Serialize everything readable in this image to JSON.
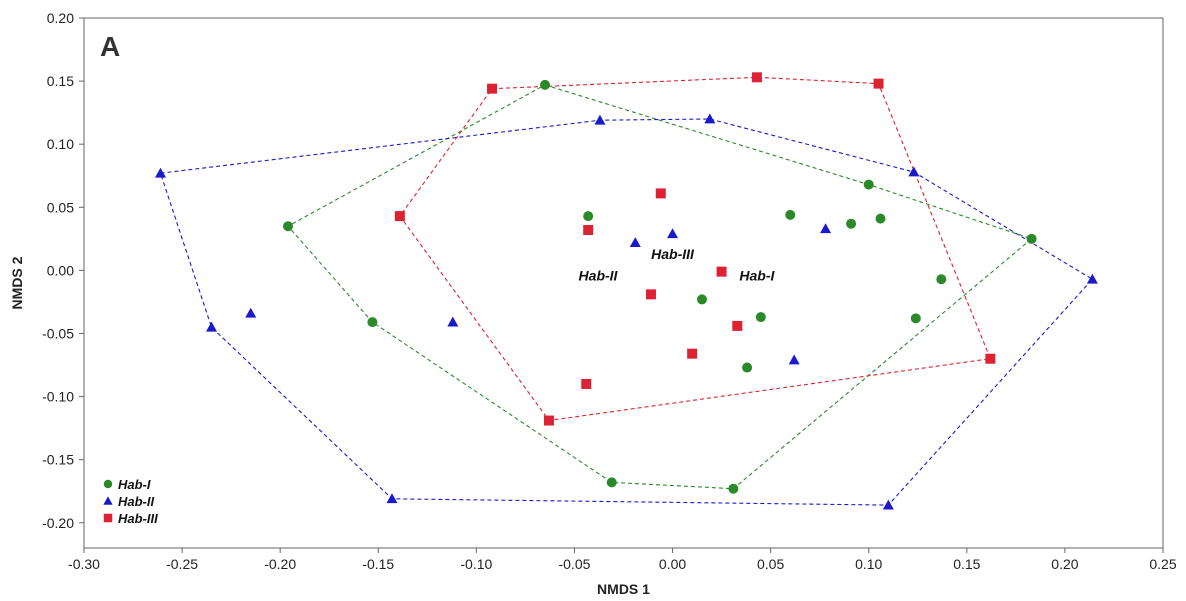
{
  "chart_data": {
    "type": "scatter",
    "panel_label": "A",
    "xlabel": "NMDS 1",
    "ylabel": "NMDS 2",
    "xlim": [
      -0.3,
      0.25
    ],
    "ylim": [
      -0.22,
      0.2
    ],
    "x_ticks": [
      "-0.30",
      "-0.25",
      "-0.20",
      "-0.15",
      "-0.10",
      "-0.05",
      "0.00",
      "0.05",
      "0.10",
      "0.15",
      "0.20",
      "0.25"
    ],
    "y_ticks": [
      "0.20",
      "0.15",
      "0.10",
      "0.05",
      "0.00",
      "-0.05",
      "-0.10",
      "-0.15",
      "-0.20"
    ],
    "legend_position": "bottom-left",
    "series": [
      {
        "name": "Hab-I",
        "marker": "circle",
        "color": "#2a8a2a",
        "points": [
          [
            -0.065,
            0.147
          ],
          [
            0.1,
            0.068
          ],
          [
            0.183,
            0.025
          ],
          [
            0.124,
            -0.038
          ],
          [
            0.031,
            -0.173
          ],
          [
            -0.031,
            -0.168
          ],
          [
            -0.153,
            -0.041
          ],
          [
            -0.196,
            0.035
          ],
          [
            -0.043,
            0.043
          ],
          [
            0.06,
            0.044
          ],
          [
            0.091,
            0.037
          ],
          [
            0.106,
            0.041
          ],
          [
            0.137,
            -0.007
          ],
          [
            0.015,
            -0.023
          ],
          [
            0.045,
            -0.037
          ],
          [
            0.038,
            -0.077
          ]
        ],
        "hull": [
          [
            -0.065,
            0.147
          ],
          [
            0.1,
            0.068
          ],
          [
            0.183,
            0.025
          ],
          [
            0.031,
            -0.173
          ],
          [
            -0.031,
            -0.168
          ],
          [
            -0.153,
            -0.041
          ],
          [
            -0.196,
            0.035
          ]
        ]
      },
      {
        "name": "Hab-II",
        "marker": "triangle",
        "color": "#1a1acc",
        "points": [
          [
            -0.261,
            0.077
          ],
          [
            -0.037,
            0.119
          ],
          [
            0.019,
            0.12
          ],
          [
            0.123,
            0.078
          ],
          [
            0.214,
            -0.007
          ],
          [
            0.11,
            -0.186
          ],
          [
            -0.143,
            -0.181
          ],
          [
            -0.235,
            -0.045
          ],
          [
            -0.215,
            -0.034
          ],
          [
            -0.112,
            -0.041
          ],
          [
            -0.019,
            0.022
          ],
          [
            0.0,
            0.029
          ],
          [
            0.078,
            0.033
          ],
          [
            0.062,
            -0.071
          ]
        ],
        "hull": [
          [
            -0.261,
            0.077
          ],
          [
            -0.037,
            0.119
          ],
          [
            0.019,
            0.12
          ],
          [
            0.123,
            0.078
          ],
          [
            0.214,
            -0.007
          ],
          [
            0.11,
            -0.186
          ],
          [
            -0.143,
            -0.181
          ],
          [
            -0.235,
            -0.045
          ]
        ]
      },
      {
        "name": "Hab-III",
        "marker": "square",
        "color": "#dd2233",
        "points": [
          [
            -0.092,
            0.144
          ],
          [
            0.043,
            0.153
          ],
          [
            0.105,
            0.148
          ],
          [
            0.162,
            -0.07
          ],
          [
            -0.063,
            -0.119
          ],
          [
            -0.139,
            0.043
          ],
          [
            -0.006,
            0.061
          ],
          [
            -0.043,
            0.032
          ],
          [
            0.025,
            -0.001
          ],
          [
            -0.011,
            -0.019
          ],
          [
            0.033,
            -0.044
          ],
          [
            0.01,
            -0.066
          ],
          [
            -0.044,
            -0.09
          ]
        ],
        "hull": [
          [
            -0.092,
            0.144
          ],
          [
            0.043,
            0.153
          ],
          [
            0.105,
            0.148
          ],
          [
            0.162,
            -0.07
          ],
          [
            -0.063,
            -0.119
          ],
          [
            -0.139,
            0.043
          ]
        ]
      }
    ],
    "centroid_labels": [
      {
        "text": "Hab-III",
        "x": 0.0,
        "y": 0.013
      },
      {
        "text": "Hab-II",
        "x": -0.038,
        "y": -0.004
      },
      {
        "text": "Hab-I",
        "x": 0.043,
        "y": -0.004
      }
    ]
  }
}
